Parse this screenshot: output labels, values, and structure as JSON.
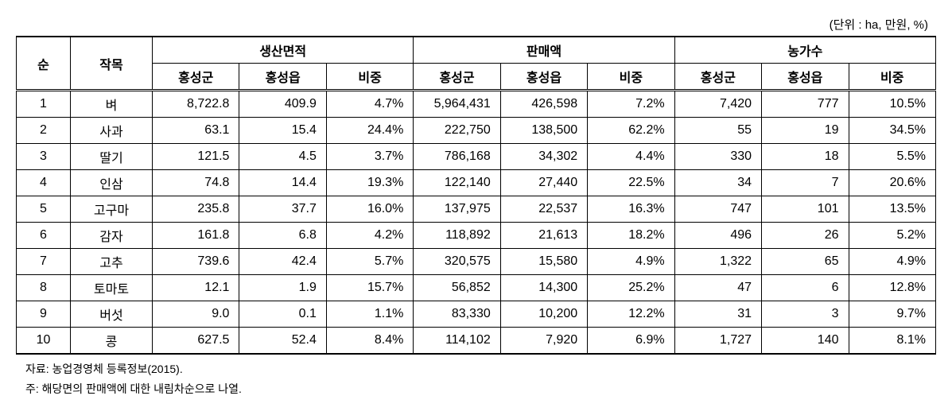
{
  "unit_label": "(단위 : ha, 만원, %)",
  "headers": {
    "rank": "순",
    "item": "작목",
    "group1": "생산면적",
    "group2": "판매액",
    "group3": "농가수",
    "sub1": "홍성군",
    "sub2": "홍성읍",
    "sub3": "비중"
  },
  "rows": [
    {
      "rank": "1",
      "item": "벼",
      "a1": "8,722.8",
      "a2": "409.9",
      "a3": "4.7%",
      "b1": "5,964,431",
      "b2": "426,598",
      "b3": "7.2%",
      "c1": "7,420",
      "c2": "777",
      "c3": "10.5%"
    },
    {
      "rank": "2",
      "item": "사과",
      "a1": "63.1",
      "a2": "15.4",
      "a3": "24.4%",
      "b1": "222,750",
      "b2": "138,500",
      "b3": "62.2%",
      "c1": "55",
      "c2": "19",
      "c3": "34.5%"
    },
    {
      "rank": "3",
      "item": "딸기",
      "a1": "121.5",
      "a2": "4.5",
      "a3": "3.7%",
      "b1": "786,168",
      "b2": "34,302",
      "b3": "4.4%",
      "c1": "330",
      "c2": "18",
      "c3": "5.5%"
    },
    {
      "rank": "4",
      "item": "인삼",
      "a1": "74.8",
      "a2": "14.4",
      "a3": "19.3%",
      "b1": "122,140",
      "b2": "27,440",
      "b3": "22.5%",
      "c1": "34",
      "c2": "7",
      "c3": "20.6%"
    },
    {
      "rank": "5",
      "item": "고구마",
      "a1": "235.8",
      "a2": "37.7",
      "a3": "16.0%",
      "b1": "137,975",
      "b2": "22,537",
      "b3": "16.3%",
      "c1": "747",
      "c2": "101",
      "c3": "13.5%"
    },
    {
      "rank": "6",
      "item": "감자",
      "a1": "161.8",
      "a2": "6.8",
      "a3": "4.2%",
      "b1": "118,892",
      "b2": "21,613",
      "b3": "18.2%",
      "c1": "496",
      "c2": "26",
      "c3": "5.2%"
    },
    {
      "rank": "7",
      "item": "고추",
      "a1": "739.6",
      "a2": "42.4",
      "a3": "5.7%",
      "b1": "320,575",
      "b2": "15,580",
      "b3": "4.9%",
      "c1": "1,322",
      "c2": "65",
      "c3": "4.9%"
    },
    {
      "rank": "8",
      "item": "토마토",
      "a1": "12.1",
      "a2": "1.9",
      "a3": "15.7%",
      "b1": "56,852",
      "b2": "14,300",
      "b3": "25.2%",
      "c1": "47",
      "c2": "6",
      "c3": "12.8%"
    },
    {
      "rank": "9",
      "item": "버섯",
      "a1": "9.0",
      "a2": "0.1",
      "a3": "1.1%",
      "b1": "83,330",
      "b2": "10,200",
      "b3": "12.2%",
      "c1": "31",
      "c2": "3",
      "c3": "9.7%"
    },
    {
      "rank": "10",
      "item": "콩",
      "a1": "627.5",
      "a2": "52.4",
      "a3": "8.4%",
      "b1": "114,102",
      "b2": "7,920",
      "b3": "6.9%",
      "c1": "1,727",
      "c2": "140",
      "c3": "8.1%"
    }
  ],
  "footnotes": {
    "source": "자료: 농업경영체 등록정보(2015).",
    "note": "주: 해당면의 판매액에 대한 내림차순으로 나열."
  }
}
